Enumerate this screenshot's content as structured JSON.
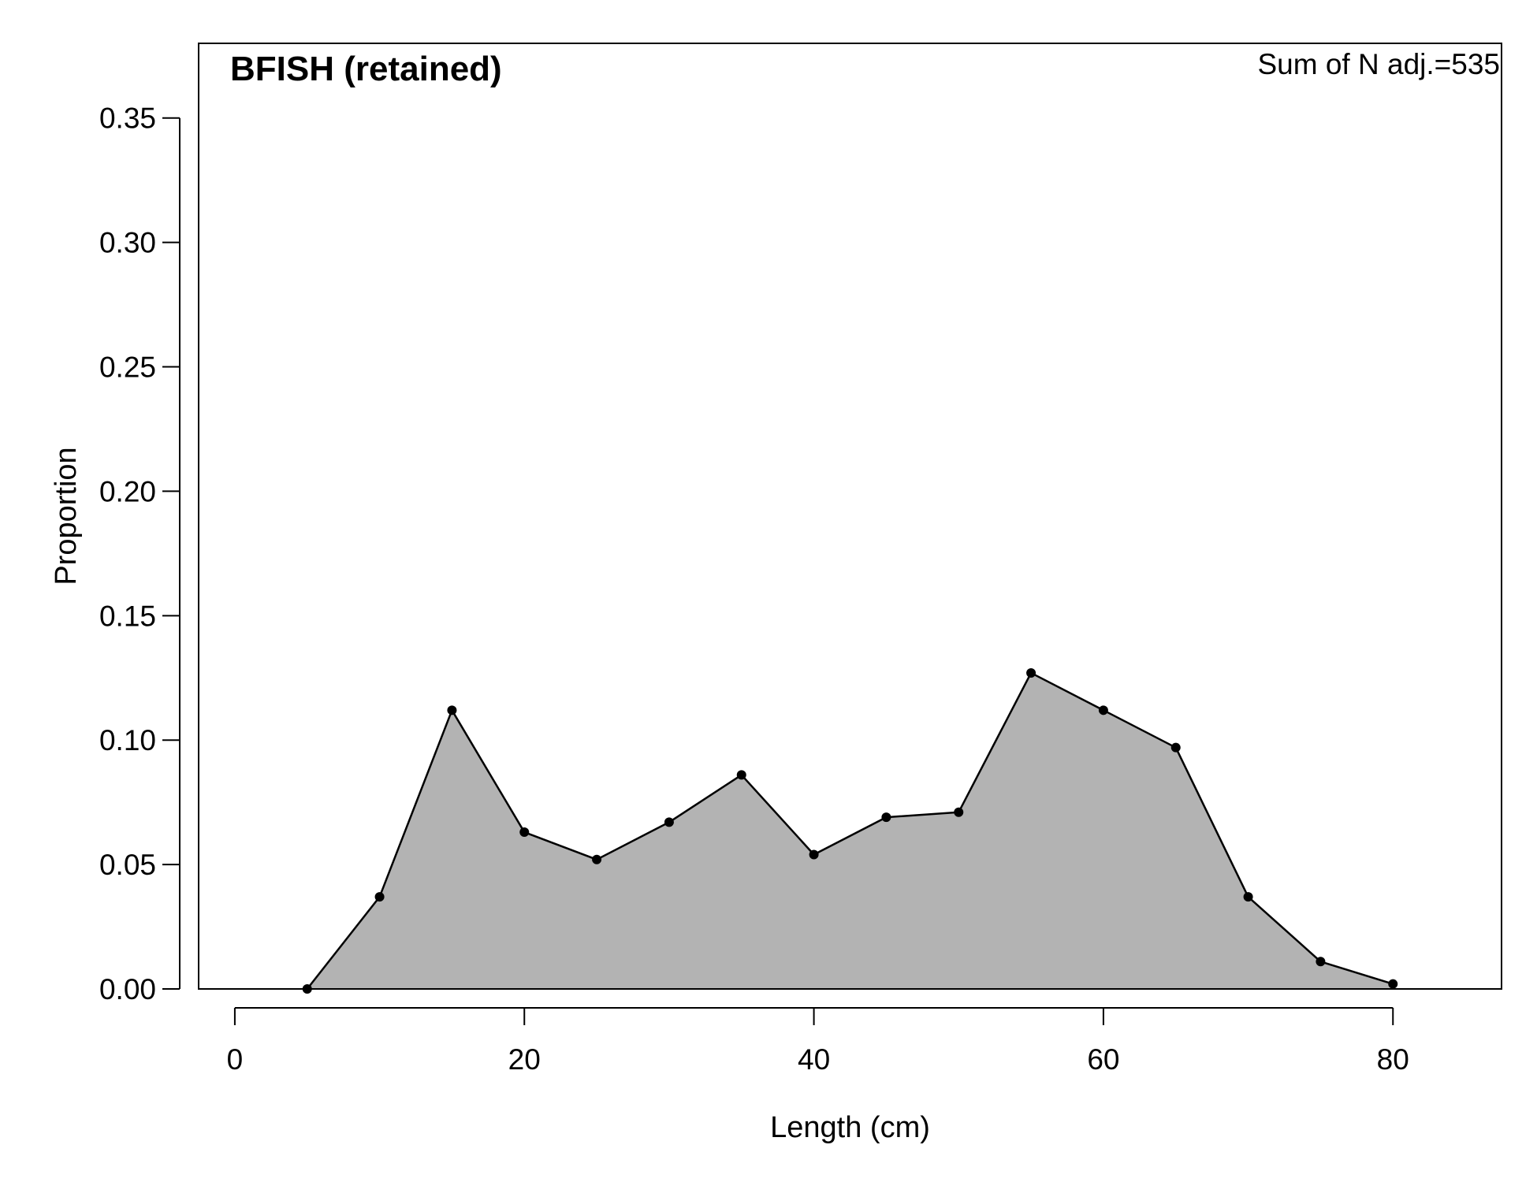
{
  "chart_data": {
    "type": "area",
    "title": "BFISH (retained)",
    "annotation": "Sum of N adj.=535",
    "xlabel": "Length (cm)",
    "ylabel": "Proportion",
    "xlim": [
      -2.5,
      87.5
    ],
    "ylim": [
      0,
      0.38
    ],
    "xticks": [
      0,
      20,
      40,
      60,
      80
    ],
    "xtick_labels": [
      "0",
      "20",
      "40",
      "60",
      "80"
    ],
    "yticks": [
      0,
      0.05,
      0.1,
      0.15,
      0.2,
      0.25,
      0.3,
      0.35
    ],
    "ytick_labels": [
      "0.00",
      "0.05",
      "0.10",
      "0.15",
      "0.20",
      "0.25",
      "0.30",
      "0.35"
    ],
    "grid": false,
    "x": [
      5,
      10,
      15,
      20,
      25,
      30,
      35,
      40,
      45,
      50,
      55,
      60,
      65,
      70,
      75,
      80
    ],
    "y": [
      0.0,
      0.037,
      0.112,
      0.063,
      0.052,
      0.067,
      0.086,
      0.054,
      0.069,
      0.071,
      0.127,
      0.112,
      0.097,
      0.037,
      0.011,
      0.002
    ],
    "colors": {
      "fill": "#b3b3b3",
      "line": "#000000",
      "points": "#000000"
    }
  }
}
